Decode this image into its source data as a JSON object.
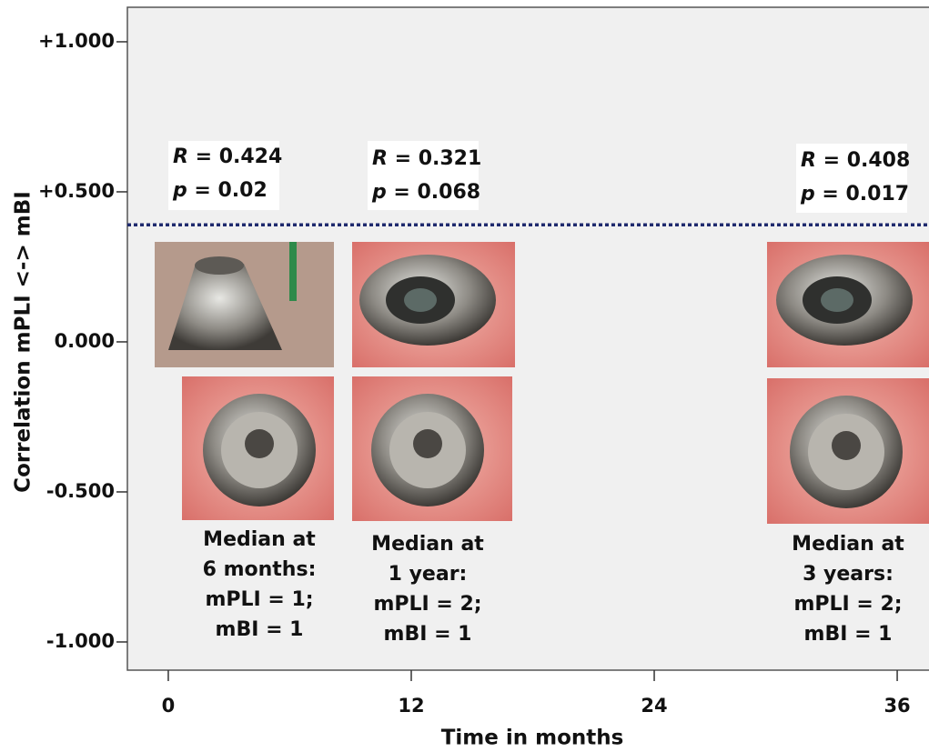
{
  "chart_data": {
    "type": "annotated",
    "xlabel": "Time in months",
    "ylabel": "Correlation mPLI <-> mBI",
    "xlim": [
      -2.02,
      37.57
    ],
    "xticks": [
      0,
      12,
      24,
      36
    ],
    "ylim": [
      -1.094,
      1.115
    ],
    "yticks": [
      {
        "value": 1,
        "label": "+1.000"
      },
      {
        "value": 0.5,
        "label": "+0.500"
      },
      {
        "value": 0,
        "label": "0.000"
      },
      {
        "value": -0.5,
        "label": "-0.500"
      },
      {
        "value": -1,
        "label": "-1.000"
      }
    ],
    "reference_line": {
      "value": 0.39,
      "color": "#1f2a6e",
      "style": "dotted"
    },
    "annotations": [
      {
        "r": "R = 0.424",
        "p": "p = 0.02",
        "median": [
          "Median at",
          "6 months:",
          "mPLI = 1;",
          "mBI = 1"
        ]
      },
      {
        "r": "R = 0.321",
        "p": "p = 0.068",
        "median": [
          "Median at",
          "1 year:",
          "mPLI = 2;",
          "mBI = 1"
        ]
      },
      {
        "r": "R = 0.408",
        "p": "p = 0.017",
        "median": [
          "Median at",
          "3 years:",
          "mPLI = 2;",
          "mBI = 1"
        ]
      }
    ]
  }
}
